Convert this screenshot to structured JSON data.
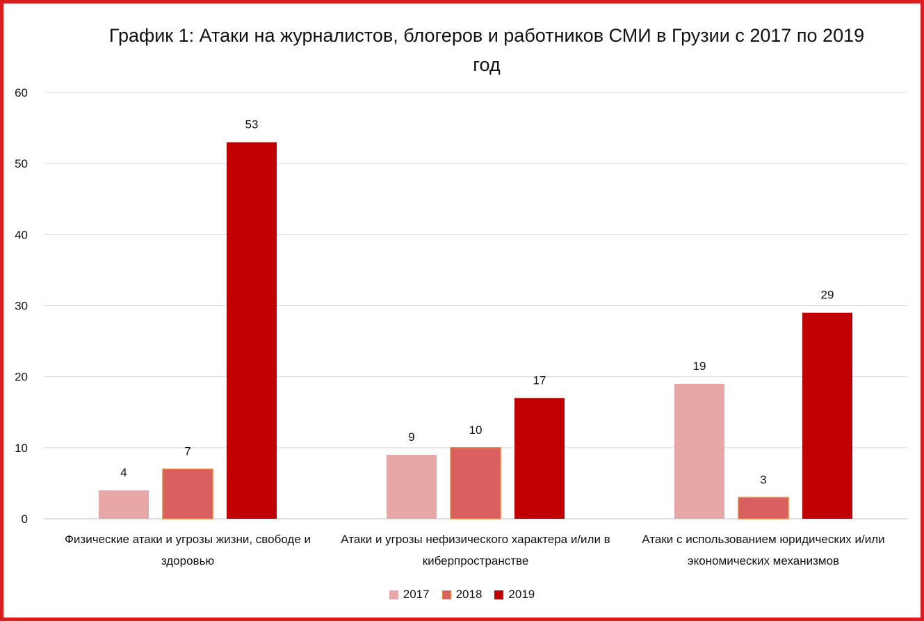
{
  "chart_data": {
    "type": "bar",
    "title": "График 1: Атаки на журналистов, блогеров и работников СМИ в Грузии с 2017 по 2019 год",
    "categories": [
      "Физические атаки и угрозы жизни, свободе и здоровью",
      "Атаки и угрозы нефизического характера и/или в киберпространстве",
      "Атаки с использованием юридических и/или экономических механизмов"
    ],
    "series": [
      {
        "name": "2017",
        "values": [
          4,
          9,
          19
        ],
        "color": "#e8a7a7"
      },
      {
        "name": "2018",
        "values": [
          7,
          10,
          3
        ],
        "color": "#d96060"
      },
      {
        "name": "2019",
        "values": [
          53,
          17,
          29
        ],
        "color": "#c00000"
      }
    ],
    "ylim": [
      0,
      60
    ],
    "yticks": [
      "0",
      "10",
      "20",
      "30",
      "40",
      "50",
      "60"
    ],
    "grid": true,
    "legend_position": "bottom",
    "xlabel": "",
    "ylabel": ""
  }
}
